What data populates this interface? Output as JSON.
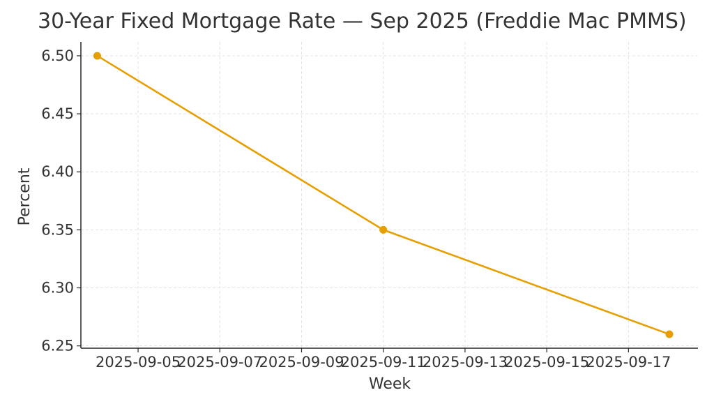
{
  "chart_data": {
    "type": "line",
    "title": "30-Year Fixed Mortgage Rate — Sep 2025 (Freddie Mac PMMS)",
    "xlabel": "Week",
    "ylabel": "Percent",
    "x_type": "date",
    "x": [
      "2025-09-04",
      "2025-09-11",
      "2025-09-18"
    ],
    "xlim": [
      "2025-09-03.6",
      "2025-09-18.7"
    ],
    "ylim": [
      6.248,
      6.512
    ],
    "x_ticks": [
      "2025-09-05",
      "2025-09-07",
      "2025-09-09",
      "2025-09-11",
      "2025-09-13",
      "2025-09-15",
      "2025-09-17"
    ],
    "y_ticks": [
      "6.25",
      "6.30",
      "6.35",
      "6.40",
      "6.45",
      "6.50"
    ],
    "grid": true,
    "series": [
      {
        "values": [
          6.5,
          6.35,
          6.26
        ],
        "color": "#E69F00",
        "marker": "circle"
      }
    ],
    "colors": {
      "line": "#E69F00",
      "grid": "#e3e3e3",
      "axis": "#262626",
      "text": "#333333"
    }
  }
}
